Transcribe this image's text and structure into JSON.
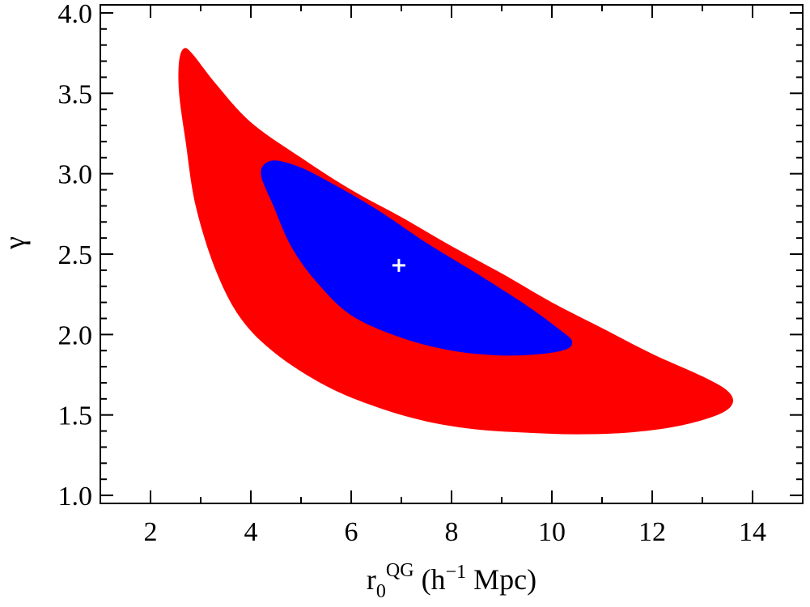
{
  "chart_data": {
    "type": "contour",
    "xlim": [
      1,
      15
    ],
    "ylim": [
      0.95,
      4.05
    ],
    "x_ticks": [
      "2",
      "4",
      "6",
      "8",
      "10",
      "12",
      "14"
    ],
    "x_tick_values": [
      2,
      4,
      6,
      8,
      10,
      12,
      14
    ],
    "y_ticks": [
      "1.0",
      "1.5",
      "2.0",
      "2.5",
      "3.0",
      "3.5",
      "4.0"
    ],
    "y_tick_values": [
      1.0,
      1.5,
      2.0,
      2.5,
      3.0,
      3.5,
      4.0
    ],
    "xlabel": {
      "main": "r",
      "sub": "0",
      "sup": "QG",
      "unit_open": " (h",
      "unit_sup": "−1",
      "unit_close": " Mpc)"
    },
    "ylabel": "γ",
    "grid": false,
    "series": [
      {
        "color": "#ff0000",
        "outline": [
          [
            2.67,
            3.78
          ],
          [
            2.85,
            3.74
          ],
          [
            3.3,
            3.56
          ],
          [
            4.0,
            3.32
          ],
          [
            5.0,
            3.1
          ],
          [
            6.0,
            2.9
          ],
          [
            7.0,
            2.73
          ],
          [
            8.0,
            2.55
          ],
          [
            9.0,
            2.38
          ],
          [
            10.0,
            2.2
          ],
          [
            11.0,
            2.04
          ],
          [
            12.0,
            1.88
          ],
          [
            13.0,
            1.74
          ],
          [
            13.5,
            1.65
          ],
          [
            13.6,
            1.57
          ],
          [
            13.3,
            1.5
          ],
          [
            12.5,
            1.43
          ],
          [
            11.5,
            1.39
          ],
          [
            10.5,
            1.38
          ],
          [
            9.5,
            1.39
          ],
          [
            8.5,
            1.41
          ],
          [
            7.5,
            1.46
          ],
          [
            6.5,
            1.55
          ],
          [
            5.5,
            1.68
          ],
          [
            4.5,
            1.88
          ],
          [
            3.8,
            2.1
          ],
          [
            3.3,
            2.4
          ],
          [
            2.9,
            2.8
          ],
          [
            2.7,
            3.2
          ],
          [
            2.57,
            3.5
          ],
          [
            2.57,
            3.7
          ]
        ]
      },
      {
        "color": "#0000ff",
        "outline": [
          [
            4.4,
            3.08
          ],
          [
            4.9,
            3.05
          ],
          [
            5.5,
            2.96
          ],
          [
            6.5,
            2.78
          ],
          [
            7.5,
            2.57
          ],
          [
            8.5,
            2.38
          ],
          [
            9.5,
            2.18
          ],
          [
            10.2,
            2.02
          ],
          [
            10.4,
            1.96
          ],
          [
            10.3,
            1.91
          ],
          [
            9.8,
            1.88
          ],
          [
            9.0,
            1.87
          ],
          [
            8.0,
            1.9
          ],
          [
            7.0,
            1.98
          ],
          [
            6.0,
            2.12
          ],
          [
            5.3,
            2.33
          ],
          [
            4.8,
            2.55
          ],
          [
            4.45,
            2.8
          ],
          [
            4.2,
            3.0
          ]
        ]
      }
    ],
    "best_fit": {
      "x": 6.95,
      "y": 2.43,
      "marker": "+",
      "color": "#ffffff"
    }
  }
}
